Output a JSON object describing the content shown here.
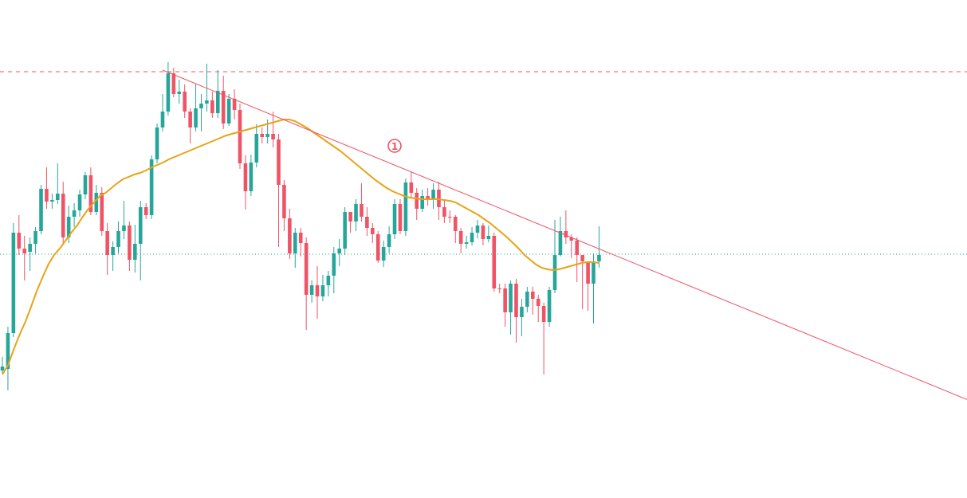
{
  "colors": {
    "up": "#26a69a",
    "down": "#ef5366",
    "ma": "#e8a317",
    "trendline": "#ef5366",
    "resistance": "#ef5366",
    "baseline": "#26a69a",
    "background": "#ffffff"
  },
  "annotation": {
    "label": "1"
  },
  "chart_data": {
    "type": "candlestick",
    "grid": false,
    "legend": "none",
    "y_range": [
      0,
      625
    ],
    "resistance_level": 90,
    "baseline_level": 319,
    "trendline": [
      [
        29,
        88
      ],
      [
        172,
        494
      ]
    ],
    "candles": [
      [
        465,
        460,
        448,
        468
      ],
      [
        463,
        418,
        410,
        490
      ],
      [
        418,
        292,
        280,
        423
      ],
      [
        292,
        312,
        270,
        320
      ],
      [
        312,
        318,
        296,
        352
      ],
      [
        316,
        306,
        298,
        340
      ],
      [
        306,
        290,
        285,
        318
      ],
      [
        290,
        237,
        232,
        294
      ],
      [
        237,
        253,
        210,
        262
      ],
      [
        253,
        251,
        243,
        262
      ],
      [
        251,
        243,
        205,
        256
      ],
      [
        243,
        298,
        228,
        305
      ],
      [
        298,
        272,
        258,
        305
      ],
      [
        272,
        264,
        255,
        285
      ],
      [
        264,
        244,
        238,
        272
      ],
      [
        244,
        220,
        216,
        250
      ],
      [
        220,
        266,
        210,
        270
      ],
      [
        266,
        242,
        232,
        270
      ],
      [
        242,
        290,
        235,
        296
      ],
      [
        290,
        320,
        280,
        345
      ],
      [
        320,
        310,
        303,
        340
      ],
      [
        310,
        290,
        278,
        318
      ],
      [
        290,
        283,
        252,
        300
      ],
      [
        283,
        326,
        278,
        340
      ],
      [
        326,
        306,
        282,
        342
      ],
      [
        306,
        260,
        252,
        352
      ],
      [
        260,
        270,
        255,
        275
      ],
      [
        270,
        200,
        195,
        275
      ],
      [
        200,
        160,
        155,
        205
      ],
      [
        160,
        140,
        118,
        165
      ],
      [
        140,
        92,
        78,
        145
      ],
      [
        92,
        118,
        85,
        122
      ],
      [
        118,
        115,
        100,
        130
      ],
      [
        115,
        140,
        106,
        148
      ],
      [
        140,
        160,
        136,
        180
      ],
      [
        160,
        136,
        105,
        165
      ],
      [
        136,
        130,
        118,
        165
      ],
      [
        130,
        126,
        80,
        140
      ],
      [
        126,
        142,
        115,
        148
      ],
      [
        142,
        114,
        88,
        148
      ],
      [
        114,
        155,
        95,
        162
      ],
      [
        155,
        124,
        118,
        158
      ],
      [
        124,
        138,
        112,
        150
      ],
      [
        138,
        205,
        130,
        212
      ],
      [
        205,
        240,
        195,
        263
      ],
      [
        240,
        204,
        194,
        246
      ],
      [
        204,
        168,
        156,
        210
      ],
      [
        168,
        172,
        160,
        180
      ],
      [
        172,
        168,
        150,
        180
      ],
      [
        168,
        175,
        140,
        185
      ],
      [
        175,
        232,
        168,
        310
      ],
      [
        232,
        274,
        226,
        290
      ],
      [
        274,
        318,
        262,
        325
      ],
      [
        318,
        292,
        286,
        336
      ],
      [
        292,
        305,
        286,
        322
      ],
      [
        305,
        370,
        298,
        414
      ],
      [
        370,
        358,
        352,
        380
      ],
      [
        358,
        372,
        334,
        400
      ],
      [
        372,
        358,
        345,
        378
      ],
      [
        358,
        346,
        340,
        372
      ],
      [
        346,
        318,
        310,
        368
      ],
      [
        318,
        312,
        300,
        334
      ],
      [
        312,
        266,
        260,
        320
      ],
      [
        266,
        278,
        266,
        292
      ],
      [
        278,
        256,
        250,
        290
      ],
      [
        256,
        272,
        230,
        278
      ],
      [
        272,
        286,
        260,
        296
      ],
      [
        286,
        294,
        280,
        305
      ],
      [
        294,
        327,
        290,
        330
      ],
      [
        327,
        310,
        302,
        335
      ],
      [
        310,
        294,
        284,
        318
      ],
      [
        294,
        256,
        250,
        300
      ],
      [
        256,
        290,
        250,
        294
      ],
      [
        290,
        229,
        224,
        296
      ],
      [
        229,
        242,
        216,
        248
      ],
      [
        242,
        262,
        236,
        276
      ],
      [
        262,
        246,
        238,
        266
      ],
      [
        246,
        250,
        236,
        258
      ],
      [
        250,
        238,
        230,
        262
      ],
      [
        238,
        260,
        228,
        276
      ],
      [
        260,
        272,
        252,
        280
      ],
      [
        272,
        272,
        264,
        280
      ],
      [
        272,
        290,
        270,
        305
      ],
      [
        290,
        306,
        286,
        318
      ],
      [
        306,
        304,
        296,
        312
      ],
      [
        304,
        292,
        285,
        308
      ],
      [
        292,
        283,
        276,
        299
      ],
      [
        283,
        300,
        280,
        308
      ],
      [
        300,
        296,
        283,
        304
      ],
      [
        296,
        362,
        292,
        366
      ],
      [
        362,
        362,
        356,
        368
      ],
      [
        362,
        392,
        356,
        410
      ],
      [
        392,
        356,
        352,
        420
      ],
      [
        356,
        398,
        350,
        430
      ],
      [
        398,
        385,
        375,
        422
      ],
      [
        385,
        366,
        360,
        392
      ],
      [
        366,
        375,
        360,
        395
      ],
      [
        375,
        384,
        370,
        404
      ],
      [
        384,
        404,
        380,
        470
      ],
      [
        404,
        364,
        360,
        410
      ],
      [
        364,
        320,
        276,
        368
      ],
      [
        320,
        290,
        272,
        322
      ],
      [
        290,
        298,
        264,
        306
      ],
      [
        298,
        302,
        294,
        324
      ],
      [
        302,
        320,
        298,
        354
      ],
      [
        320,
        328,
        320,
        388
      ],
      [
        328,
        356,
        328,
        390
      ],
      [
        356,
        328,
        318,
        406
      ],
      [
        328,
        320,
        284,
        336
      ]
    ],
    "moving_average": [
      470,
      458,
      438,
      420,
      404,
      385,
      365,
      348,
      332,
      320,
      312,
      302,
      292,
      283,
      272,
      262,
      254,
      246,
      242,
      236,
      230,
      225,
      222,
      219,
      217,
      214,
      210,
      207,
      204,
      200,
      197,
      194,
      191,
      188,
      185,
      182,
      179,
      176,
      173,
      170,
      168,
      166,
      164,
      162,
      160,
      158,
      156,
      154,
      152,
      150,
      150,
      152,
      156,
      160,
      165,
      170,
      175,
      180,
      185,
      190,
      196,
      202,
      208,
      214,
      220,
      226,
      231,
      236,
      240,
      243,
      246,
      248,
      249,
      250,
      250,
      250,
      250,
      251,
      252,
      254,
      258,
      262,
      266,
      270,
      275,
      280,
      286,
      292,
      298,
      305,
      312,
      320,
      326,
      332,
      336,
      338,
      339,
      338,
      336,
      334,
      332,
      330,
      329,
      329,
      330
    ]
  }
}
